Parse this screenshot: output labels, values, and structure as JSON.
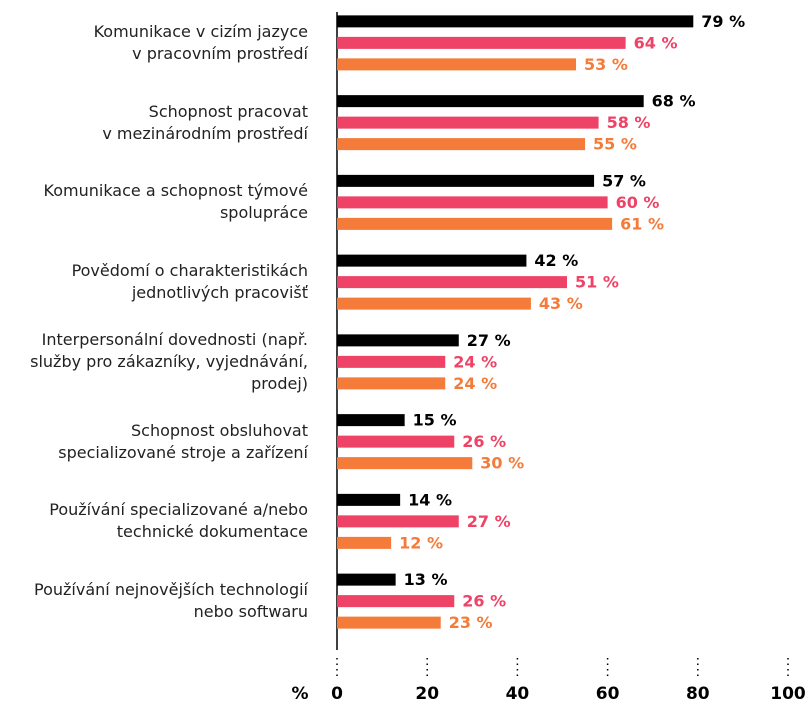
{
  "chart_data": {
    "type": "barh",
    "categories": [
      "Komunikace v cizím jazyce\nv pracovním prostředí",
      "Schopnost pracovat\nv mezinárodním prostředí",
      "Komunikace a schopnost týmové\nspolupráce",
      "Povědomí o charakteristikách\njednotlivých pracovišť",
      "Interpersonální dovednosti (např.\nslužby pro zákazníky, vyjednávání,\nprodej)",
      "Schopnost obsluhovat\nspecializované stroje a zařízení",
      "Používání specializované a/nebo\ntechnické dokumentace",
      "Používání nejnovějších technologií\nnebo softwaru"
    ],
    "series": [
      {
        "color": "#000000",
        "values": [
          79,
          68,
          57,
          42,
          27,
          15,
          14,
          13
        ],
        "value_labels": [
          "79 %",
          "68 %",
          "57 %",
          "42 %",
          "27 %",
          "15 %",
          "14 %",
          "13 %"
        ]
      },
      {
        "color": "#ee4266",
        "values": [
          64,
          58,
          60,
          51,
          24,
          26,
          27,
          26
        ],
        "value_labels": [
          "64 %",
          "58 %",
          "60 %",
          "51 %",
          "24 %",
          "26 %",
          "27 %",
          "26 %"
        ]
      },
      {
        "color": "#f47b3a",
        "values": [
          53,
          55,
          61,
          43,
          24,
          30,
          12,
          23
        ],
        "value_labels": [
          "53 %",
          "55 %",
          "61 %",
          "43 %",
          "24 %",
          "30 %",
          "12 %",
          "23 %"
        ]
      }
    ],
    "xlabel": "%",
    "xlim": [
      0,
      100
    ],
    "xticks": [
      0,
      20,
      40,
      60,
      80,
      100
    ]
  }
}
